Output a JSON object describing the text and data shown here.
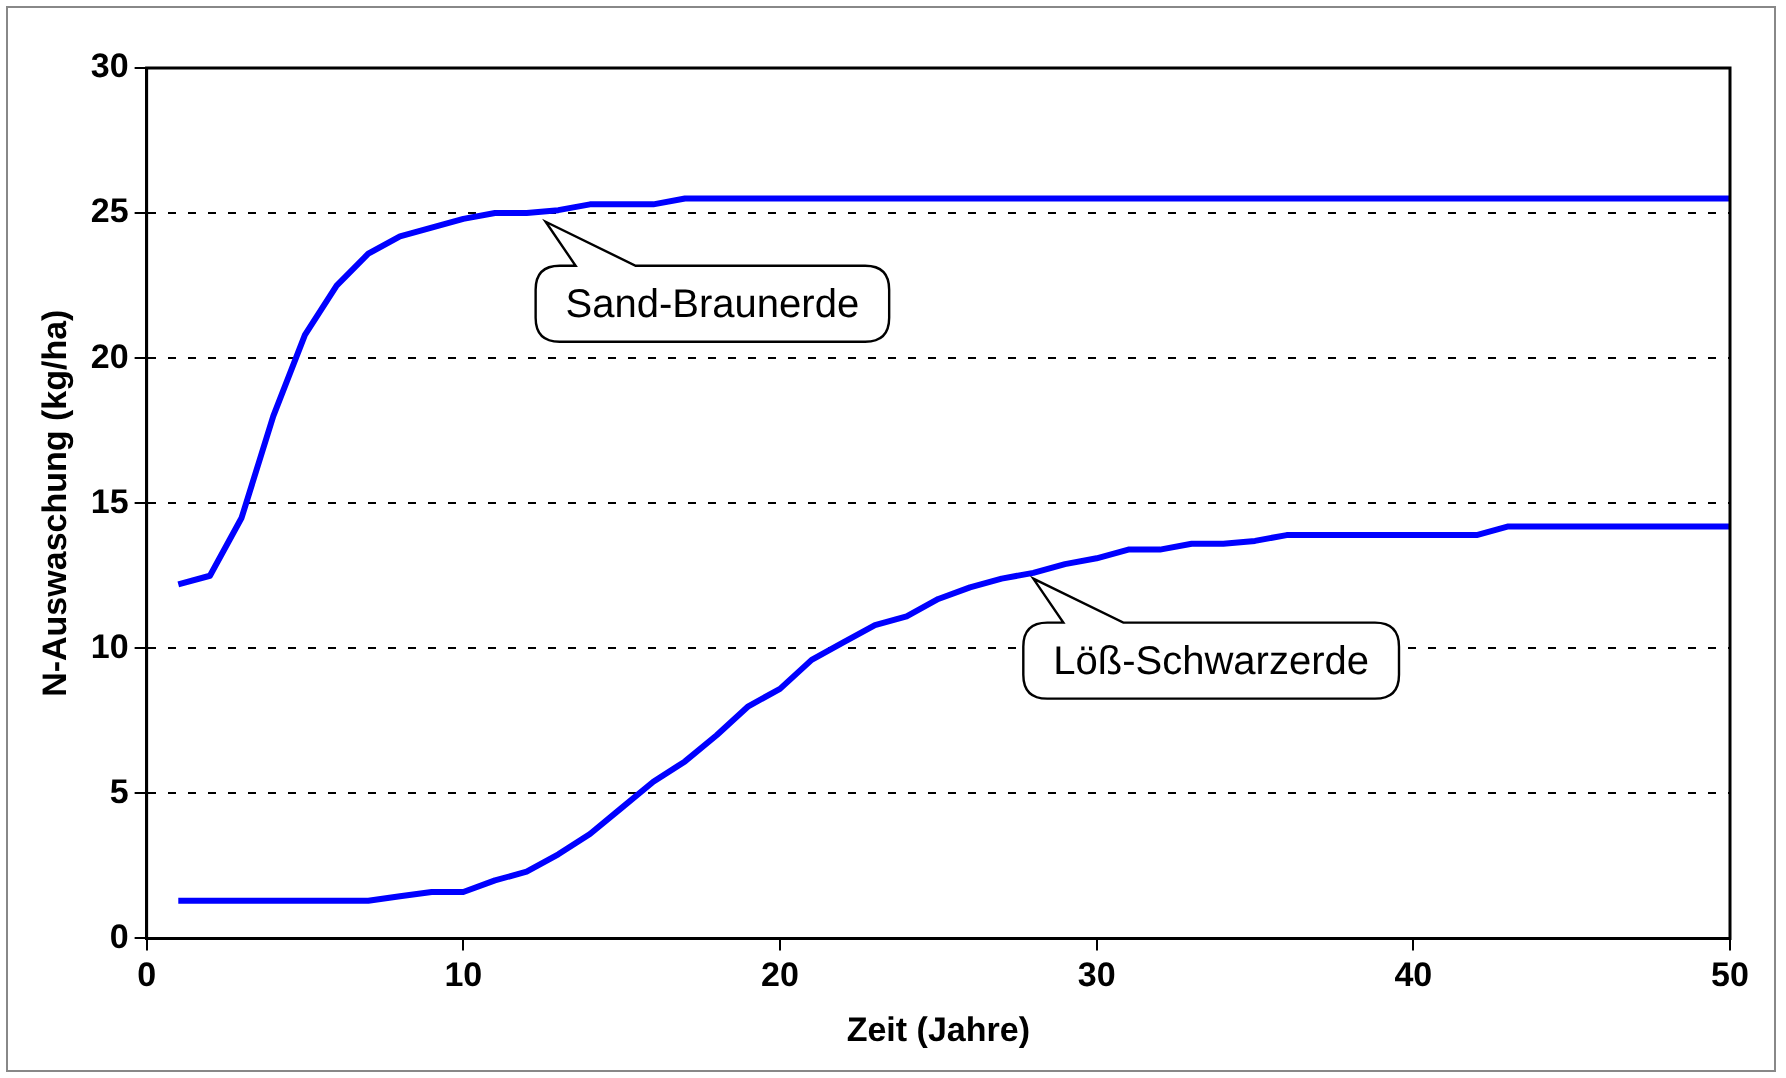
{
  "chart_data": {
    "type": "line",
    "xlabel": "Zeit (Jahre)",
    "ylabel": "N-Auswaschung (kg/ha)",
    "x": [
      1,
      2,
      3,
      4,
      5,
      6,
      7,
      8,
      9,
      10,
      11,
      12,
      13,
      14,
      15,
      16,
      17,
      18,
      19,
      20,
      21,
      22,
      23,
      24,
      25,
      26,
      27,
      28,
      29,
      30,
      31,
      32,
      33,
      34,
      35,
      36,
      37,
      38,
      39,
      40,
      41,
      42,
      43,
      44,
      45,
      46,
      47,
      48,
      49,
      50
    ],
    "series": [
      {
        "color": "#0000ff",
        "values": [
          12.2,
          12.5,
          14.5,
          18,
          20.8,
          22.5,
          23.6,
          24.2,
          24.5,
          24.8,
          25,
          25,
          25.1,
          25.3,
          25.3,
          25.3,
          25.5,
          25.5,
          25.5,
          25.5,
          25.5,
          25.5,
          25.5,
          25.5,
          25.5,
          25.5,
          25.5,
          25.5,
          25.5,
          25.5,
          25.5,
          25.5,
          25.5,
          25.5,
          25.5,
          25.5,
          25.5,
          25.5,
          25.5,
          25.5,
          25.5,
          25.5,
          25.5,
          25.5,
          25.5,
          25.5,
          25.5,
          25.5,
          25.5,
          25.5
        ]
      },
      {
        "color": "#0000ff",
        "values": [
          1.3,
          1.3,
          1.3,
          1.3,
          1.3,
          1.3,
          1.3,
          1.45,
          1.6,
          1.6,
          2,
          2.3,
          2.9,
          3.6,
          4.5,
          5.4,
          6.1,
          7,
          8,
          8.6,
          9.6,
          10.2,
          10.8,
          11.1,
          11.7,
          12.1,
          12.4,
          12.6,
          12.9,
          13.1,
          13.4,
          13.4,
          13.6,
          13.6,
          13.7,
          13.9,
          13.9,
          13.9,
          13.9,
          13.9,
          13.9,
          13.9,
          14.2,
          14.2,
          14.2,
          14.2,
          14.2,
          14.2,
          14.2,
          14.2
        ]
      }
    ],
    "annotations": [
      {
        "text": "Sand-Braunerde",
        "x": 12.6,
        "y": 24.7
      },
      {
        "text": "Löß-Schwarzerde",
        "x": 28,
        "y": 12.4
      }
    ],
    "xlim": [
      0,
      50
    ],
    "xticks": [
      0,
      10,
      20,
      30,
      40,
      50
    ],
    "ylim": [
      0,
      30
    ],
    "yticks": [
      0,
      5,
      10,
      15,
      20,
      25,
      30
    ],
    "grid": "y",
    "legend": false,
    "marker": "none",
    "line_style": "solid"
  }
}
